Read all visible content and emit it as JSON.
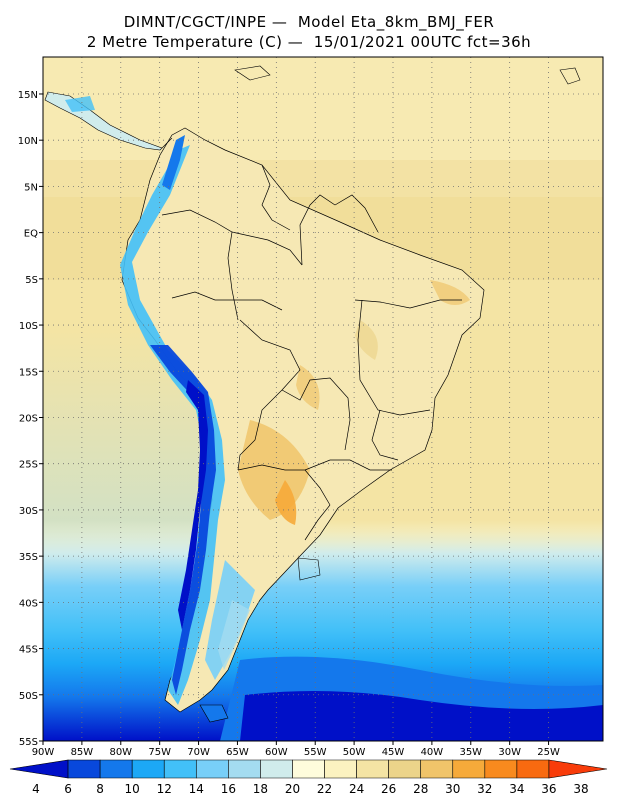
{
  "title_line1": "DIMNT/CGCT/INPE —  Model Eta_8km_BMJ_FER",
  "title_line2": "2 Metre Temperature (C) —  15/01/2021 00UTC fct=36h",
  "map": {
    "lon_range": [
      -90,
      -18
    ],
    "lat_range": [
      -55,
      19
    ],
    "lat_ticks": [
      {
        "value": 15,
        "label": "15N"
      },
      {
        "value": 10,
        "label": "10N"
      },
      {
        "value": 5,
        "label": "5N"
      },
      {
        "value": 0,
        "label": "EQ"
      },
      {
        "value": -5,
        "label": "5S"
      },
      {
        "value": -10,
        "label": "10S"
      },
      {
        "value": -15,
        "label": "15S"
      },
      {
        "value": -20,
        "label": "20S"
      },
      {
        "value": -25,
        "label": "25S"
      },
      {
        "value": -30,
        "label": "30S"
      },
      {
        "value": -35,
        "label": "35S"
      },
      {
        "value": -40,
        "label": "40S"
      },
      {
        "value": -45,
        "label": "45S"
      },
      {
        "value": -50,
        "label": "50S"
      },
      {
        "value": -55,
        "label": "55S"
      }
    ],
    "lon_ticks": [
      {
        "value": -90,
        "label": "90W"
      },
      {
        "value": -85,
        "label": "85W"
      },
      {
        "value": -80,
        "label": "80W"
      },
      {
        "value": -75,
        "label": "75W"
      },
      {
        "value": -70,
        "label": "70W"
      },
      {
        "value": -65,
        "label": "65W"
      },
      {
        "value": -60,
        "label": "60W"
      },
      {
        "value": -55,
        "label": "55W"
      },
      {
        "value": -50,
        "label": "50W"
      },
      {
        "value": -45,
        "label": "45W"
      },
      {
        "value": -40,
        "label": "40W"
      },
      {
        "value": -35,
        "label": "35W"
      },
      {
        "value": -30,
        "label": "30W"
      },
      {
        "value": -25,
        "label": "25W"
      }
    ],
    "grid": true,
    "ocean_color": "#f3e7ad"
  },
  "colorbar": {
    "labels": [
      "4",
      "6",
      "8",
      "10",
      "12",
      "14",
      "16",
      "18",
      "20",
      "22",
      "24",
      "26",
      "28",
      "30",
      "32",
      "34",
      "36",
      "38"
    ],
    "colors": [
      "#0010c8",
      "#0848dc",
      "#1478ec",
      "#1ca8f6",
      "#42c0f8",
      "#78cff8",
      "#a4dcf0",
      "#d0ecec",
      "#fefcdc",
      "#fbf2c0",
      "#f4e4a4",
      "#ecd48a",
      "#f0c46a",
      "#f6aa3a",
      "#f88a1e",
      "#f86a10",
      "#f83c0a"
    ]
  }
}
